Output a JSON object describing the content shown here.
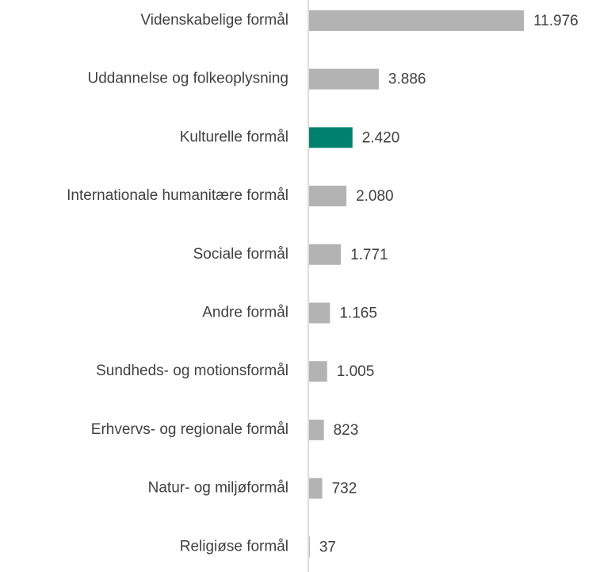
{
  "chart_data": {
    "type": "barh",
    "categories": [
      "Videnskabelige formål",
      "Uddannelse og folkeoplysning",
      "Kulturelle formål",
      "Internationale humanitære formål",
      "Sociale formål",
      "Andre formål",
      "Sundheds- og motionsformål",
      "Erhvervs- og regionale formål",
      "Natur- og miljøformål",
      "Religiøse formål"
    ],
    "values": [
      11976,
      3886,
      2420,
      2080,
      1771,
      1165,
      1005,
      823,
      732,
      37
    ],
    "value_labels": [
      "11.976",
      "3.886",
      "2.420",
      "2.080",
      "1.771",
      "1.165",
      "1.005",
      "823",
      "732",
      "37"
    ],
    "colors": [
      "#b3b3b3",
      "#b3b3b3",
      "#00806e",
      "#b3b3b3",
      "#b3b3b3",
      "#b3b3b3",
      "#b3b3b3",
      "#b3b3b3",
      "#b3b3b3",
      "#b3b3b3"
    ]
  }
}
